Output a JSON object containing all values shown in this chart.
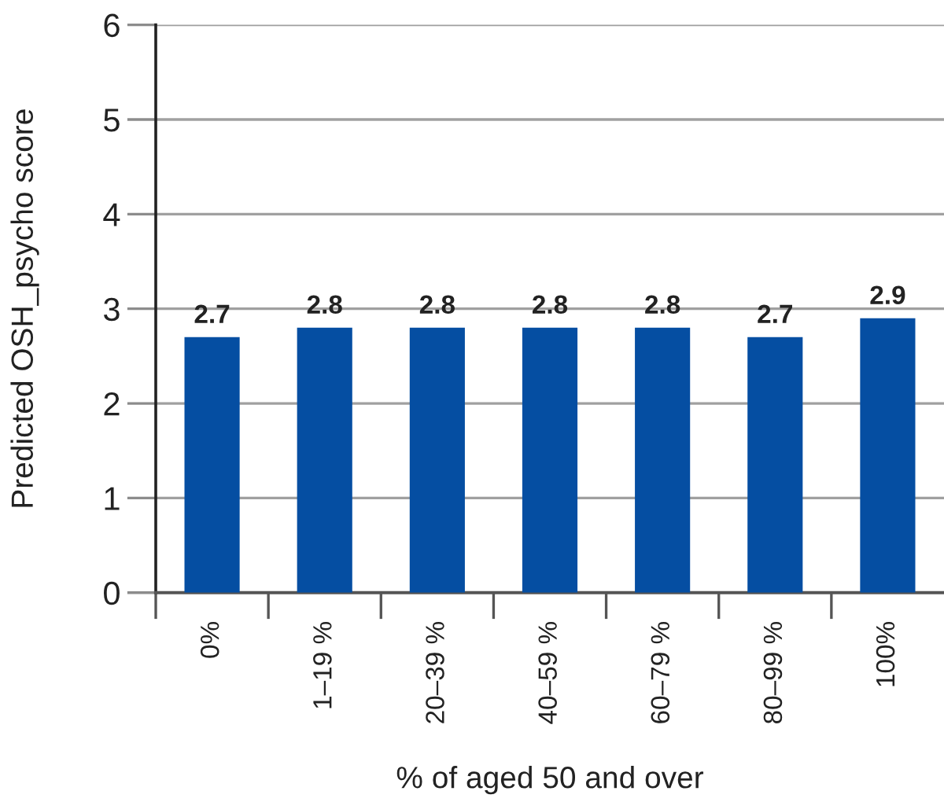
{
  "chart_data": {
    "type": "bar",
    "xlabel": "% of aged 50 and over",
    "ylabel": "Predicted OSH_psycho score",
    "categories": [
      "0%",
      "1–19 %",
      "20–39 %",
      "40–59 %",
      "60–79 %",
      "80–99 %",
      "100%"
    ],
    "values": [
      2.7,
      2.8,
      2.8,
      2.8,
      2.8,
      2.7,
      2.9
    ],
    "color": "#054ea2",
    "ylim": [
      0,
      6
    ],
    "yticks": [
      0,
      1,
      2,
      3,
      4,
      5,
      6
    ],
    "grid": "y",
    "data_labels": true
  }
}
